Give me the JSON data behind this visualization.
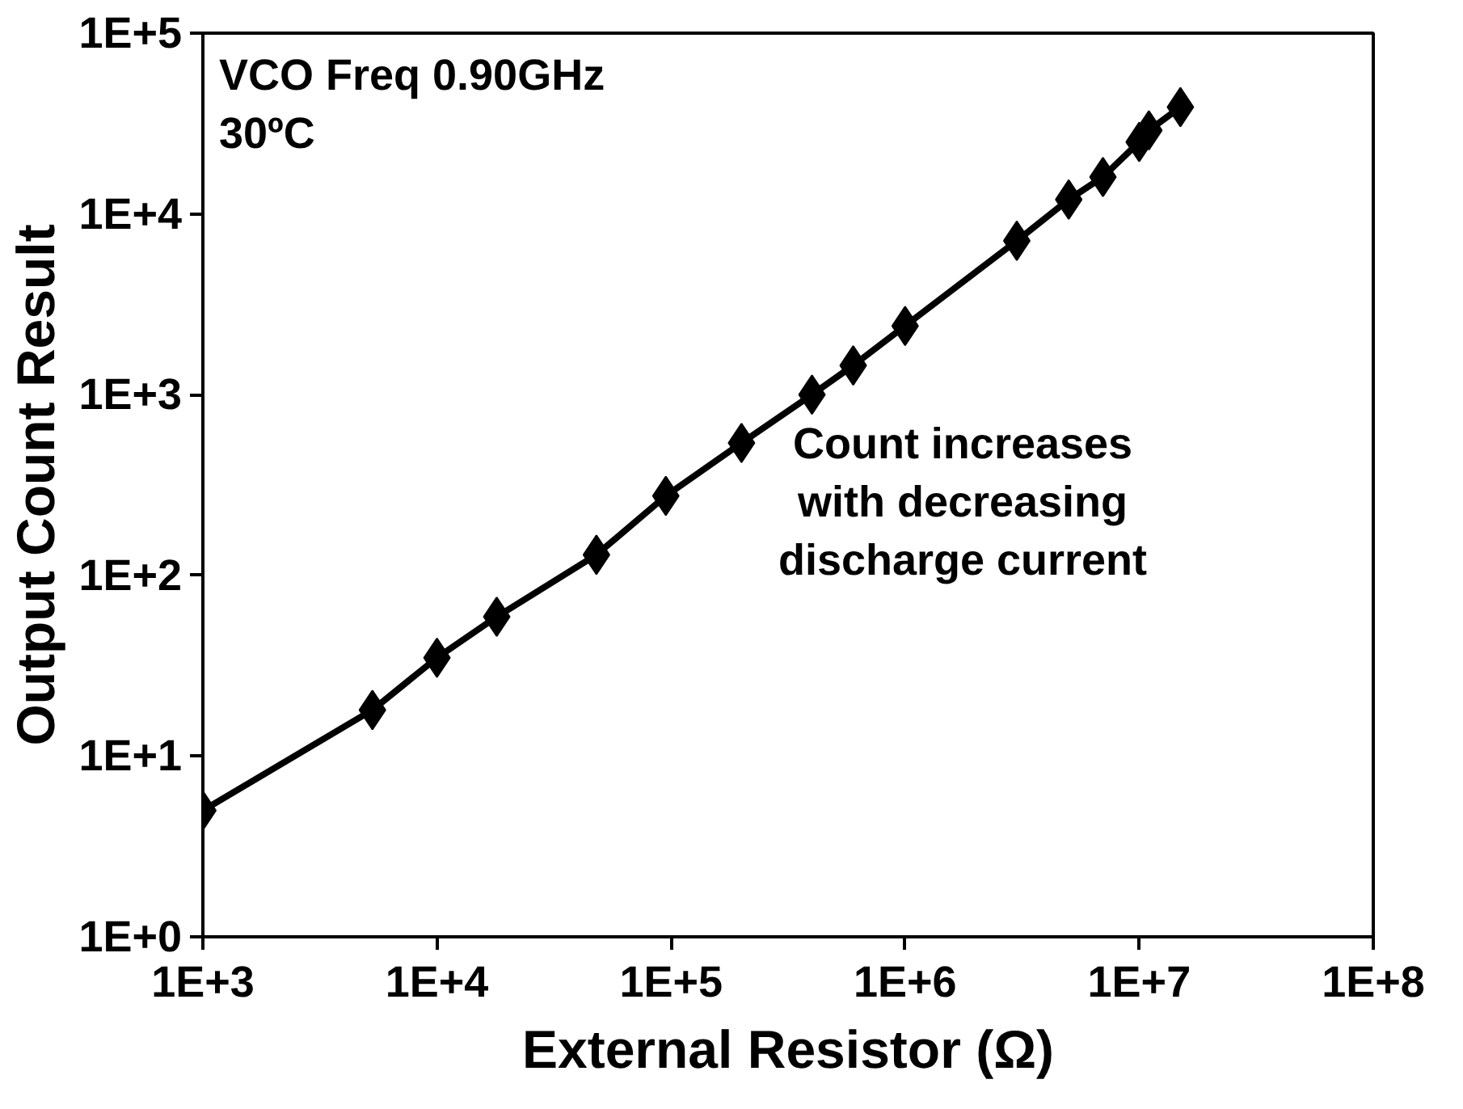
{
  "chart_data": {
    "type": "line",
    "xlabel": "External Resistor (Ω)",
    "ylabel": "Output Count Result",
    "annotations": [
      "VCO Freq 0.90GHz\n30ºC",
      "Count increases\nwith decreasing\ndischarge current"
    ],
    "log": "xy",
    "marker": "diamond",
    "line_style": "solid",
    "grid": false,
    "xlim": [
      1000,
      100000000
    ],
    "ylim": [
      1,
      100000
    ],
    "xticks": [
      {
        "value": 1000,
        "label": "1E+3"
      },
      {
        "value": 10000,
        "label": "1E+4"
      },
      {
        "value": 100000,
        "label": "1E+5"
      },
      {
        "value": 1000000,
        "label": "1E+6"
      },
      {
        "value": 10000000,
        "label": "1E+7"
      },
      {
        "value": 100000000,
        "label": "1E+8"
      }
    ],
    "yticks": [
      {
        "value": 1,
        "label": "1E+0"
      },
      {
        "value": 10,
        "label": "1E+1"
      },
      {
        "value": 100,
        "label": "1E+2"
      },
      {
        "value": 1000,
        "label": "1E+3"
      },
      {
        "value": 10000,
        "label": "1E+4"
      },
      {
        "value": 100000,
        "label": "1E+5"
      }
    ],
    "series": [
      {
        "color": "#000000",
        "x": [
          1000,
          5300,
          10000,
          18000,
          48000,
          95000,
          200000,
          400000,
          600000,
          1000000,
          3000000,
          5000000,
          7000000,
          10000000,
          11000000,
          15000000
        ],
        "values": [
          5,
          18,
          35,
          59,
          130,
          275,
          540,
          1000,
          1450,
          2400,
          7100,
          12000,
          16000,
          25000,
          29000,
          39000
        ]
      }
    ]
  }
}
